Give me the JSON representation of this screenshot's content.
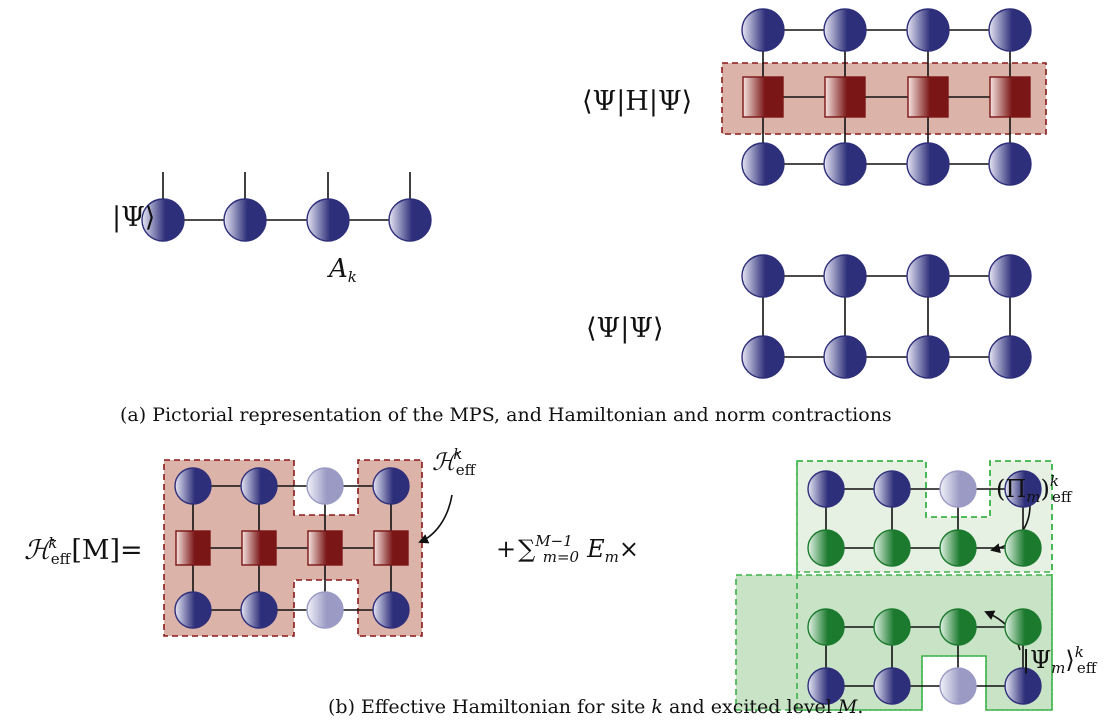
{
  "panel_a": {
    "mps_label": "|Ψ⟩",
    "site_label": "A",
    "site_index": "k",
    "expectation_label": "⟨Ψ|H|Ψ⟩",
    "norm_label": "⟨Ψ|Ψ⟩",
    "caption": "(a) Pictorial representation of the MPS, and Hamiltonian and norm contractions"
  },
  "panel_b": {
    "lhs_symbol": "ℋ",
    "lhs_sub": "eff",
    "lhs_sup": "k",
    "lhs_arg": "[M]=",
    "heff_symbol": "ℋ",
    "heff_sub": "eff",
    "heff_sup": "k",
    "sum_prefix": "+",
    "sum_symbol": "∑",
    "sum_upper": "M−1",
    "sum_lower": "m=0",
    "sum_term": "E",
    "sum_term_sub": "m",
    "sum_times": "×",
    "proj_text": "(Π",
    "proj_sub_m": "m",
    "proj_close": ")",
    "proj_sub": "eff",
    "proj_sup": "k",
    "ket_text": "|Ψ",
    "ket_sub_m": "m",
    "ket_close": "⟩",
    "ket_sub": "eff",
    "ket_sup": "k",
    "caption_pre": "(b) Effective Hamiltonian for site ",
    "caption_k": "k",
    "caption_mid": " and excited level ",
    "caption_M": "M",
    "caption_end": "."
  },
  "colors": {
    "mps_dark": "#2e2f7a",
    "mps_light": "#e6e6f4",
    "ghost_dark": "#9a9ac4",
    "ghost_light": "#f2f2fa",
    "mpo_dark": "#7a1616",
    "mpo_light": "#f6e4e0",
    "mpo_region": "#dcb3a8",
    "mpo_border": "#8b1a1a",
    "green_dark": "#1b7a2e",
    "green_light": "#e4f4e6",
    "proj_region": "#e6f0e3",
    "ket_region": "#c9e3c6",
    "green_border": "#3db24a",
    "line": "#111111"
  }
}
